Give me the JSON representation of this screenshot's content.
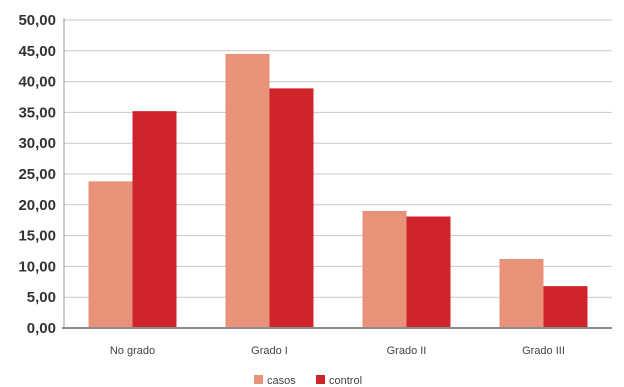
{
  "chart_data": {
    "type": "bar",
    "categories": [
      "No grado",
      "Grado I",
      "Grado II",
      "Grado III"
    ],
    "series": [
      {
        "name": "casos",
        "color": "#e8927a",
        "values": [
          23.8,
          44.5,
          19.0,
          11.2
        ]
      },
      {
        "name": "control",
        "color": "#d0242b",
        "values": [
          35.2,
          38.9,
          18.1,
          6.8
        ]
      }
    ],
    "yticks": [
      "0,00",
      "5,00",
      "10,00",
      "15,00",
      "20,00",
      "25,00",
      "30,00",
      "35,00",
      "40,00",
      "45,00",
      "50,00"
    ],
    "ylim": [
      0,
      50
    ],
    "grid": true,
    "legend_position": "bottom-center",
    "title": "",
    "xlabel": "",
    "ylabel": ""
  }
}
